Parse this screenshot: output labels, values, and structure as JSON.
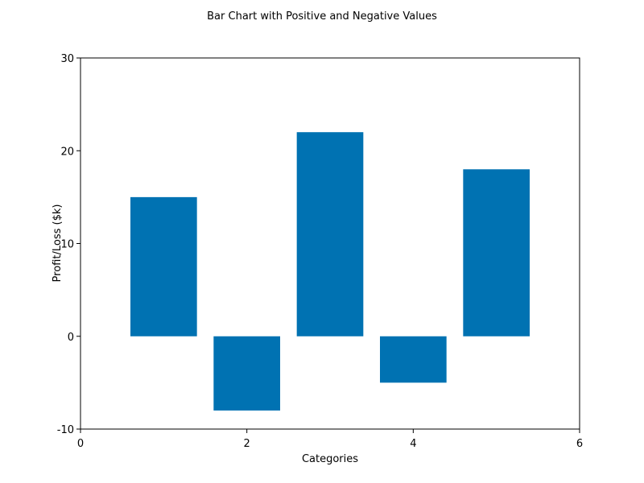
{
  "chart_data": {
    "type": "bar",
    "title": "Bar Chart with Positive and Negative Values",
    "xlabel": "Categories",
    "ylabel": "Profit/Loss ($k)",
    "x": [
      1,
      2,
      3,
      4,
      5
    ],
    "values": [
      15,
      -8,
      22,
      -5,
      18
    ],
    "bar_width": 0.8,
    "xlim": [
      0,
      6
    ],
    "ylim": [
      -10,
      30
    ],
    "xticks": [
      0,
      2,
      4,
      6
    ],
    "yticks": [
      -10,
      0,
      10,
      20,
      30
    ],
    "grid": false,
    "bar_color": "#0072B2"
  }
}
